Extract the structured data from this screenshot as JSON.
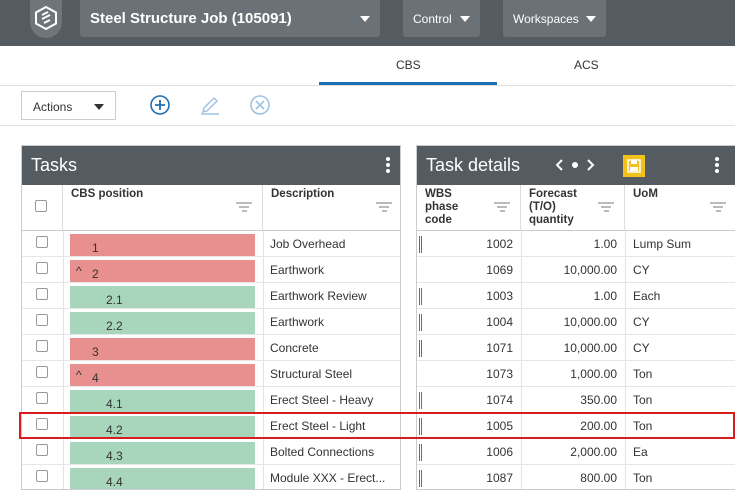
{
  "header": {
    "project": "Steel Structure Job (105091)",
    "control": "Control",
    "workspaces": "Workspaces"
  },
  "tabs": [
    "CBS",
    "ACS"
  ],
  "toolbar": {
    "actions": "Actions"
  },
  "tasks_panel": {
    "title": "Tasks",
    "columns": [
      "CBS position",
      "Description"
    ],
    "rows": [
      {
        "cbs": "1",
        "description": "Job Overhead",
        "status": "red",
        "expander": false
      },
      {
        "cbs": "2",
        "description": "Earthwork",
        "status": "red",
        "expander": true
      },
      {
        "cbs": "2.1",
        "description": "Earthwork Review",
        "status": "green",
        "expander": false
      },
      {
        "cbs": "2.2",
        "description": "Earthwork",
        "status": "green",
        "expander": false
      },
      {
        "cbs": "3",
        "description": "Concrete",
        "status": "red",
        "expander": false
      },
      {
        "cbs": "4",
        "description": "Structural Steel",
        "status": "red",
        "expander": true
      },
      {
        "cbs": "4.1",
        "description": "Erect Steel - Heavy",
        "status": "green",
        "expander": false
      },
      {
        "cbs": "4.2",
        "description": "Erect Steel - Light",
        "status": "green",
        "expander": false
      },
      {
        "cbs": "4.3",
        "description": "Bolted Connections",
        "status": "green",
        "expander": false
      },
      {
        "cbs": "4.4",
        "description": "Module XXX - Erect...",
        "status": "green",
        "expander": false
      }
    ]
  },
  "details_panel": {
    "title": "Task details",
    "columns": {
      "wbs": [
        "WBS",
        "phase",
        "code"
      ],
      "forecast": [
        "Forecast",
        "(T/O)",
        "quantity"
      ],
      "uom": "UoM"
    },
    "rows": [
      {
        "wbs": "1002",
        "forecast": "1.00",
        "uom": "Lump Sum",
        "mark": "red"
      },
      {
        "wbs": "1069",
        "forecast": "10,000.00",
        "uom": "CY",
        "mark": ""
      },
      {
        "wbs": "1003",
        "forecast": "1.00",
        "uom": "Each",
        "mark": "green"
      },
      {
        "wbs": "1004",
        "forecast": "10,000.00",
        "uom": "CY",
        "mark": "green"
      },
      {
        "wbs": "1071",
        "forecast": "10,000.00",
        "uom": "CY",
        "mark": "red"
      },
      {
        "wbs": "1073",
        "forecast": "1,000.00",
        "uom": "Ton",
        "mark": ""
      },
      {
        "wbs": "1074",
        "forecast": "350.00",
        "uom": "Ton",
        "mark": "green"
      },
      {
        "wbs": "1005",
        "forecast": "200.00",
        "uom": "Ton",
        "mark": "green"
      },
      {
        "wbs": "1006",
        "forecast": "2,000.00",
        "uom": "Ea",
        "mark": "green"
      },
      {
        "wbs": "1087",
        "forecast": "800.00",
        "uom": "Ton",
        "mark": "green"
      }
    ]
  },
  "colors": {
    "red_status": "#e8908f",
    "green_status": "#a7d6bc",
    "accent": "#1f6fb5",
    "save": "#f2c11c",
    "highlight": "#d91c1c"
  }
}
